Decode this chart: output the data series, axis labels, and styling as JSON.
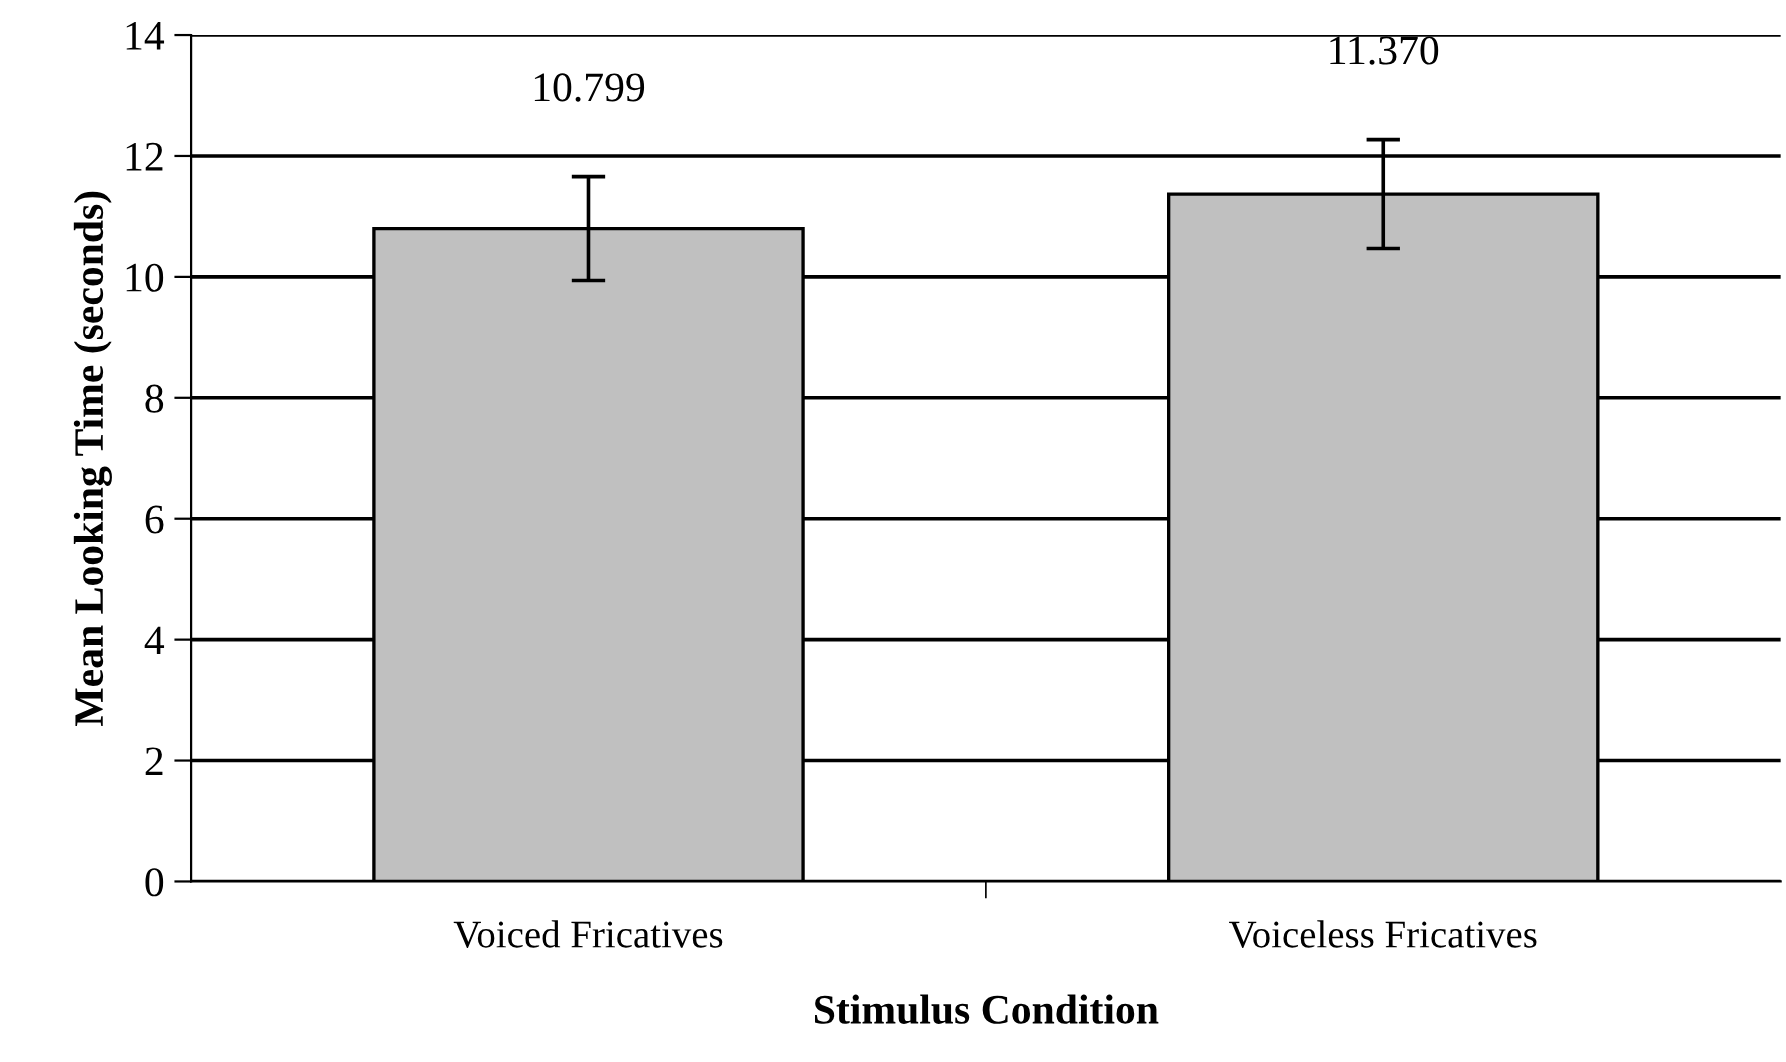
{
  "chart_data": {
    "type": "bar",
    "xlabel": "Stimulus Condition",
    "ylabel": "Mean Looking Time (seconds)",
    "categories": [
      "Voiced Fricatives",
      "Voiceless Fricatives"
    ],
    "series": [
      {
        "color": "#c0c0c0",
        "values": [
          10.799,
          11.37
        ],
        "errors": [
          0.86,
          0.9
        ],
        "value_labels": [
          "10.799",
          "11.370"
        ]
      }
    ],
    "ylim": [
      0,
      14
    ],
    "yticks": [
      0,
      2,
      4,
      6,
      8,
      10,
      12,
      14
    ],
    "grid": "y",
    "legend": false
  }
}
